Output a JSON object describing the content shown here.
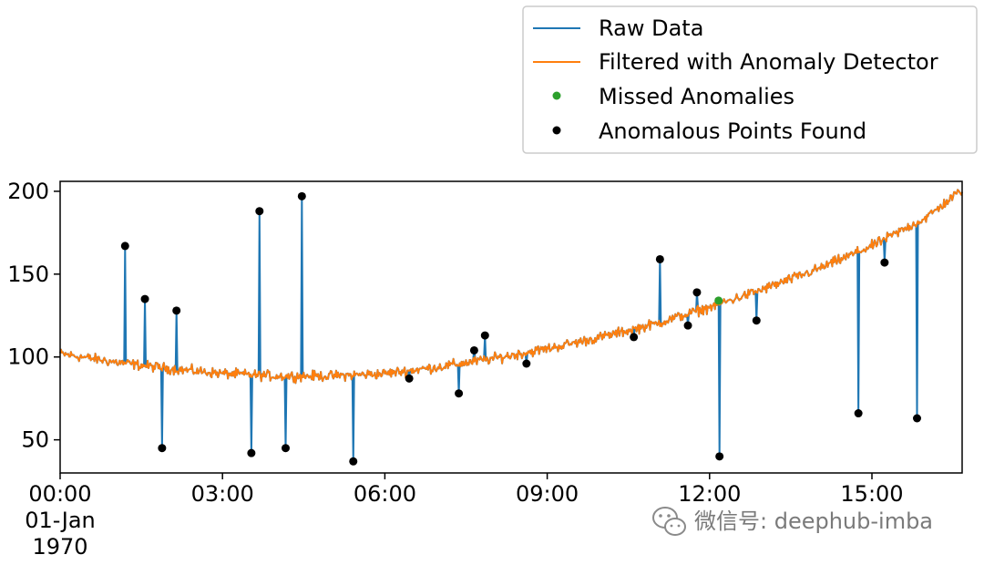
{
  "watermark": {
    "text": "微信号: deephub-imba",
    "icon": "wechat-icon"
  },
  "chart_data": {
    "type": "line",
    "title": "",
    "xlabel": "",
    "ylabel": "",
    "x_unit": "time",
    "xlim": [
      "1970-01-01 00:00",
      "1970-01-01 16:40"
    ],
    "ylim": [
      30,
      206
    ],
    "grid": false,
    "legend_position": "top-right",
    "x_ticks": [
      {
        "value": "00:00",
        "lines": [
          "00:00",
          "01-Jan",
          "1970"
        ]
      },
      {
        "value": "03:00",
        "lines": [
          "03:00"
        ]
      },
      {
        "value": "06:00",
        "lines": [
          "06:00"
        ]
      },
      {
        "value": "09:00",
        "lines": [
          "09:00"
        ]
      },
      {
        "value": "12:00",
        "lines": [
          "12:00"
        ]
      },
      {
        "value": "15:00",
        "lines": [
          "15:00"
        ]
      }
    ],
    "y_ticks": [
      50,
      100,
      150,
      200
    ],
    "baseline": {
      "description_only": false,
      "values": [
        {
          "t": "00:00",
          "y": 102
        },
        {
          "t": "01:00",
          "y": 97
        },
        {
          "t": "02:00",
          "y": 93
        },
        {
          "t": "03:00",
          "y": 90
        },
        {
          "t": "04:00",
          "y": 88.5
        },
        {
          "t": "05:00",
          "y": 88.5
        },
        {
          "t": "06:00",
          "y": 90
        },
        {
          "t": "07:00",
          "y": 94
        },
        {
          "t": "08:00",
          "y": 99
        },
        {
          "t": "09:00",
          "y": 105
        },
        {
          "t": "10:00",
          "y": 112
        },
        {
          "t": "11:00",
          "y": 120
        },
        {
          "t": "12:00",
          "y": 130
        },
        {
          "t": "13:00",
          "y": 141
        },
        {
          "t": "14:00",
          "y": 153
        },
        {
          "t": "15:00",
          "y": 167
        },
        {
          "t": "16:00",
          "y": 184
        },
        {
          "t": "16:40",
          "y": 201
        }
      ],
      "noise_amplitude": 3
    },
    "series": [
      {
        "name": "Raw Data",
        "color": "#1f77b4",
        "kind": "line",
        "spikes": [
          {
            "t": "01:12",
            "y": 167
          },
          {
            "t": "01:34",
            "y": 135
          },
          {
            "t": "01:53",
            "y": 45
          },
          {
            "t": "02:09",
            "y": 128
          },
          {
            "t": "03:32",
            "y": 42
          },
          {
            "t": "03:41",
            "y": 188
          },
          {
            "t": "04:10",
            "y": 45
          },
          {
            "t": "04:28",
            "y": 197
          },
          {
            "t": "05:25",
            "y": 37
          },
          {
            "t": "06:27",
            "y": 87
          },
          {
            "t": "07:22",
            "y": 78
          },
          {
            "t": "07:39",
            "y": 104
          },
          {
            "t": "07:51",
            "y": 113
          },
          {
            "t": "08:37",
            "y": 96
          },
          {
            "t": "10:36",
            "y": 112
          },
          {
            "t": "11:05",
            "y": 159
          },
          {
            "t": "11:36",
            "y": 119
          },
          {
            "t": "11:46",
            "y": 139
          },
          {
            "t": "12:11",
            "y": 40
          },
          {
            "t": "12:52",
            "y": 122
          },
          {
            "t": "14:45",
            "y": 66
          },
          {
            "t": "15:14",
            "y": 157
          },
          {
            "t": "15:50",
            "y": 63
          }
        ]
      },
      {
        "name": "Filtered with Anomaly Detector",
        "color": "#ff7f0e",
        "kind": "line"
      },
      {
        "name": "Missed Anomalies",
        "color": "#2ca02c",
        "kind": "marker",
        "points": [
          {
            "t": "12:10",
            "y": 134
          }
        ]
      },
      {
        "name": "Anomalous Points Found",
        "color": "#000000",
        "kind": "marker",
        "points": [
          {
            "t": "01:12",
            "y": 167
          },
          {
            "t": "01:34",
            "y": 135
          },
          {
            "t": "01:53",
            "y": 45
          },
          {
            "t": "02:09",
            "y": 128
          },
          {
            "t": "03:32",
            "y": 42
          },
          {
            "t": "03:41",
            "y": 188
          },
          {
            "t": "04:10",
            "y": 45
          },
          {
            "t": "04:28",
            "y": 197
          },
          {
            "t": "05:25",
            "y": 37
          },
          {
            "t": "06:27",
            "y": 87
          },
          {
            "t": "07:22",
            "y": 78
          },
          {
            "t": "07:39",
            "y": 104
          },
          {
            "t": "07:51",
            "y": 113
          },
          {
            "t": "08:37",
            "y": 96
          },
          {
            "t": "10:36",
            "y": 112
          },
          {
            "t": "11:05",
            "y": 159
          },
          {
            "t": "11:36",
            "y": 119
          },
          {
            "t": "11:46",
            "y": 139
          },
          {
            "t": "12:11",
            "y": 40
          },
          {
            "t": "12:52",
            "y": 122
          },
          {
            "t": "14:45",
            "y": 66
          },
          {
            "t": "15:14",
            "y": 157
          },
          {
            "t": "15:50",
            "y": 63
          }
        ]
      }
    ]
  }
}
